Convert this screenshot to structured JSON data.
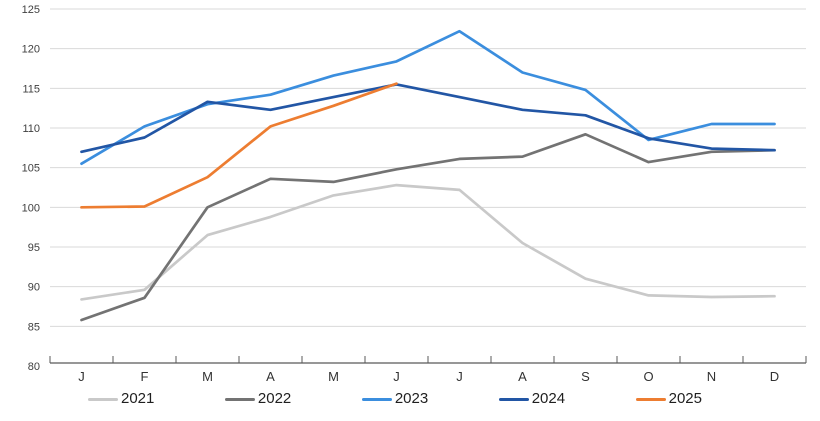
{
  "chart_data": {
    "type": "line",
    "title": "",
    "xlabel": "",
    "ylabel": "",
    "background_color": "#ffffff",
    "grid": true,
    "gridline_color": "#d9d9d9",
    "axis_color": "#595959",
    "legend_position": "bottom",
    "x_categories": [
      "J",
      "F",
      "M",
      "A",
      "M",
      "J",
      "J",
      "A",
      "S",
      "O",
      "N",
      "D"
    ],
    "y_axis": {
      "min": 80,
      "max": 125,
      "step": 5,
      "tick_labels": [
        "80",
        "85",
        "90",
        "95",
        "100",
        "105",
        "110",
        "115",
        "120",
        "125"
      ]
    },
    "series": [
      {
        "name": "2021",
        "color": "#c9c9c9",
        "values": [
          88.4,
          89.6,
          96.5,
          98.8,
          101.5,
          102.8,
          102.2,
          95.5,
          91.0,
          88.9,
          88.7,
          88.8
        ]
      },
      {
        "name": "2022",
        "color": "#737373",
        "values": [
          85.8,
          88.6,
          100.0,
          103.6,
          103.2,
          104.8,
          106.1,
          106.4,
          109.2,
          105.7,
          107.0,
          107.2
        ]
      },
      {
        "name": "2023",
        "color": "#3b8ede",
        "values": [
          105.5,
          110.2,
          113.0,
          114.2,
          116.6,
          118.4,
          122.2,
          117.0,
          114.8,
          108.5,
          110.5,
          110.5
        ]
      },
      {
        "name": "2024",
        "color": "#2256a5",
        "values": [
          107.0,
          108.8,
          113.3,
          112.3,
          113.9,
          115.5,
          113.9,
          112.3,
          111.6,
          108.7,
          107.4,
          107.2
        ]
      },
      {
        "name": "2025",
        "color": "#ed7d31",
        "values": [
          100.0,
          100.1,
          103.8,
          110.2,
          112.8,
          115.6
        ]
      }
    ]
  }
}
